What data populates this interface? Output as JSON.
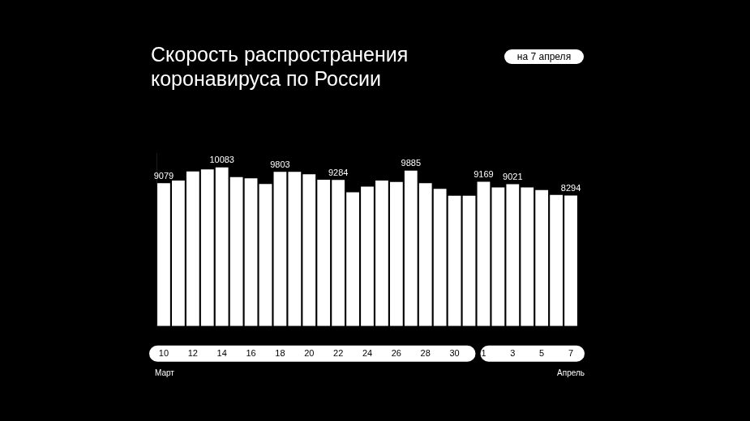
{
  "chart_data": {
    "type": "bar",
    "title": "Скорость распространения коронавируса по России",
    "subtitle": "на 7 апреля",
    "annotations": [
      "Март",
      "Апрель"
    ],
    "categories": [
      "10",
      null,
      "12",
      null,
      "14",
      null,
      "16",
      null,
      "18",
      null,
      "20",
      null,
      "22",
      null,
      "24",
      null,
      "26",
      null,
      "28",
      null,
      "30",
      null,
      "1",
      null,
      "3",
      null,
      "5",
      null,
      "7"
    ],
    "values": [
      9079,
      9254,
      9824,
      9956,
      10083,
      9474,
      9386,
      9035,
      9803,
      9800,
      9649,
      9298,
      9284,
      8509,
      8860,
      9254,
      9167,
      9885,
      9079,
      8728,
      8289,
      8289,
      9169,
      8816,
      9021,
      8816,
      8640,
      8333,
      8294
    ],
    "value_labels": [
      "9079",
      null,
      null,
      null,
      "10083",
      null,
      null,
      null,
      "9803",
      null,
      null,
      null,
      "9284",
      null,
      null,
      null,
      null,
      "9885",
      null,
      null,
      null,
      null,
      "9169",
      null,
      "9021",
      null,
      null,
      null,
      "8294"
    ],
    "color": "#ffffff",
    "ylim": [
      0,
      11000
    ],
    "grid": false,
    "data_labels": true,
    "tick_labels": "x"
  }
}
